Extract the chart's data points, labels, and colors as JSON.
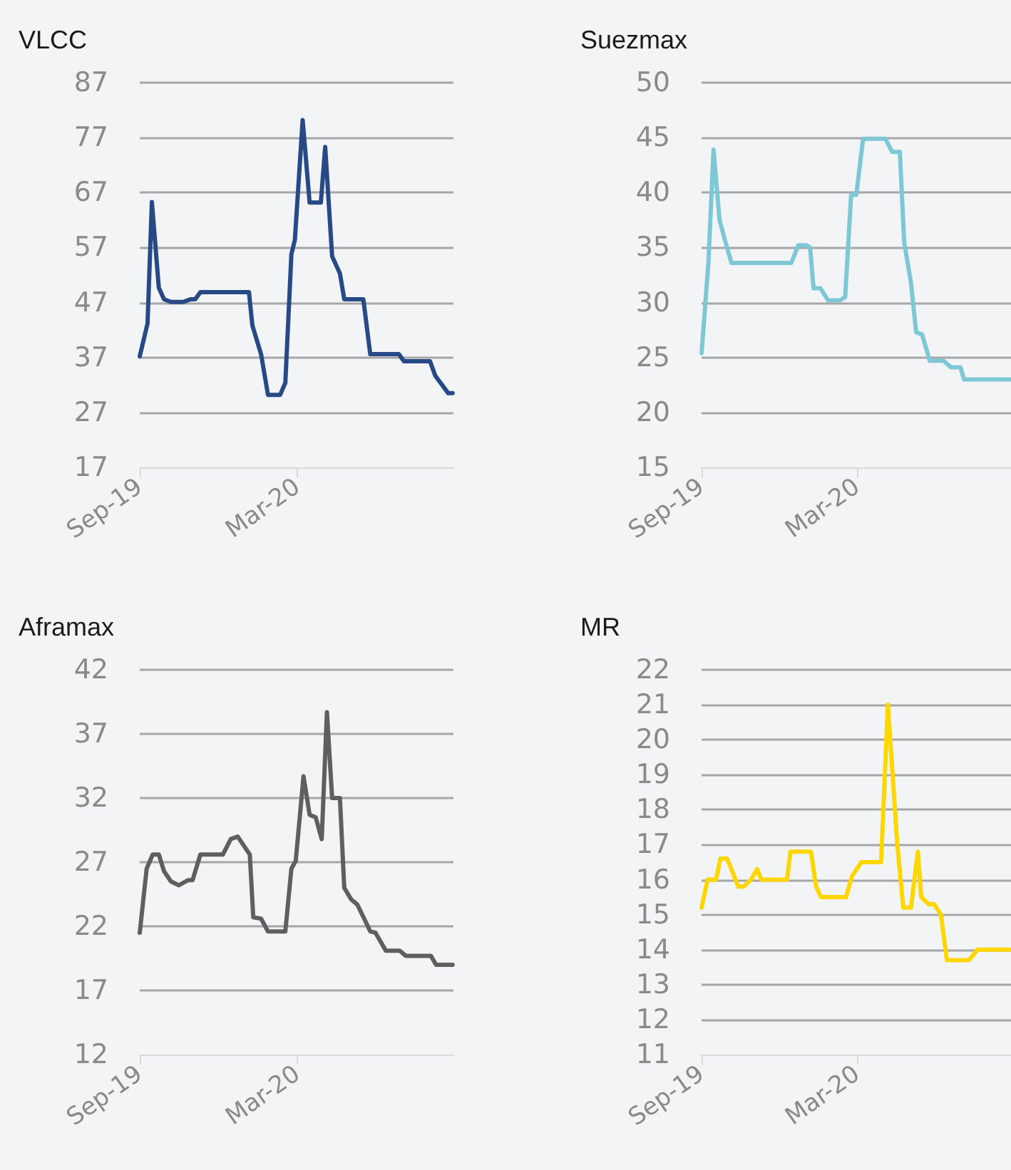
{
  "chart_data": [
    {
      "type": "line",
      "title": "VLCC",
      "xlim": [
        "2019-09-01",
        "2020-08-28"
      ],
      "xticks": [
        {
          "value": "2019-09-01",
          "label": "Sep-19"
        },
        {
          "value": "2020-03-01",
          "label": "Mar-20"
        }
      ],
      "ylim": [
        17,
        87
      ],
      "yticks": [
        17,
        27,
        37,
        47,
        57,
        67,
        77,
        87
      ],
      "grid": "y",
      "x": [
        "2019-09-01",
        "2019-09-10",
        "2019-09-15",
        "2019-09-23",
        "2019-09-29",
        "2019-10-07",
        "2019-10-21",
        "2019-10-30",
        "2019-11-04",
        "2019-11-10",
        "2020-01-05",
        "2020-01-09",
        "2020-01-19",
        "2020-01-27",
        "2020-02-10",
        "2020-02-16",
        "2020-02-23",
        "2020-02-27",
        "2020-03-07",
        "2020-03-15",
        "2020-03-28",
        "2020-04-02",
        "2020-04-10",
        "2020-04-19",
        "2020-04-24",
        "2020-05-16",
        "2020-05-24",
        "2020-06-26",
        "2020-07-02",
        "2020-08-01",
        "2020-08-07",
        "2020-08-22",
        "2020-08-27"
      ],
      "series": [
        {
          "color": "#274a87",
          "values": [
            37.2,
            43.2,
            65.3,
            49.7,
            47.6,
            47.1,
            47.1,
            47.6,
            47.6,
            48.9,
            48.9,
            42.8,
            37.6,
            30.2,
            30.2,
            32.4,
            55.8,
            58.4,
            80.2,
            65.2,
            65.2,
            75.3,
            55.4,
            52.3,
            47.6,
            47.6,
            37.6,
            37.6,
            36.3,
            36.3,
            33.7,
            30.5,
            30.5
          ]
        }
      ]
    },
    {
      "type": "line",
      "title": "Suezmax",
      "xlim": [
        "2019-09-01",
        "2020-08-28"
      ],
      "xticks": [
        {
          "value": "2019-09-01",
          "label": "Sep-19"
        },
        {
          "value": "2020-03-01",
          "label": "Mar-20"
        }
      ],
      "ylim": [
        15,
        50
      ],
      "yticks": [
        15,
        20,
        25,
        30,
        35,
        40,
        45,
        50
      ],
      "grid": "y",
      "x": [
        "2019-09-01",
        "2019-09-09",
        "2019-09-15",
        "2019-09-22",
        "2019-09-29",
        "2019-10-06",
        "2019-12-15",
        "2019-12-23",
        "2020-01-02",
        "2020-01-06",
        "2020-01-10",
        "2020-01-18",
        "2020-01-27",
        "2020-02-10",
        "2020-02-16",
        "2020-02-23",
        "2020-02-29",
        "2020-03-08",
        "2020-04-03",
        "2020-04-11",
        "2020-04-20",
        "2020-04-25",
        "2020-05-03",
        "2020-05-09",
        "2020-05-16",
        "2020-05-25",
        "2020-06-10",
        "2020-06-19",
        "2020-06-30",
        "2020-07-04",
        "2020-08-27"
      ],
      "series": [
        {
          "color": "#7ec8d5",
          "values": [
            25.4,
            33.6,
            43.9,
            37.5,
            35.5,
            33.6,
            33.6,
            35.2,
            35.2,
            35.0,
            31.3,
            31.3,
            30.2,
            30.2,
            30.5,
            39.8,
            39.8,
            44.9,
            44.9,
            43.7,
            43.7,
            35.5,
            31.8,
            27.3,
            27.1,
            24.7,
            24.7,
            24.1,
            24.1,
            23.0,
            23.0
          ]
        }
      ]
    },
    {
      "type": "line",
      "title": "Aframax",
      "xlim": [
        "2019-09-01",
        "2020-08-28"
      ],
      "xticks": [
        {
          "value": "2019-09-01",
          "label": "Sep-19"
        },
        {
          "value": "2020-03-01",
          "label": "Mar-20"
        }
      ],
      "ylim": [
        12,
        42
      ],
      "yticks": [
        12,
        17,
        22,
        27,
        32,
        37,
        42
      ],
      "grid": "y",
      "x": [
        "2019-09-01",
        "2019-09-09",
        "2019-09-16",
        "2019-09-23",
        "2019-09-29",
        "2019-10-07",
        "2019-10-16",
        "2019-10-27",
        "2019-11-01",
        "2019-11-10",
        "2019-12-06",
        "2019-12-15",
        "2019-12-23",
        "2019-12-30",
        "2020-01-06",
        "2020-01-10",
        "2020-01-19",
        "2020-01-27",
        "2020-02-16",
        "2020-02-23",
        "2020-02-28",
        "2020-03-08",
        "2020-03-15",
        "2020-03-22",
        "2020-03-29",
        "2020-04-04",
        "2020-04-10",
        "2020-04-19",
        "2020-04-24",
        "2020-05-02",
        "2020-05-09",
        "2020-05-17",
        "2020-05-24",
        "2020-05-30",
        "2020-06-11",
        "2020-06-27",
        "2020-07-04",
        "2020-08-02",
        "2020-08-08",
        "2020-08-27"
      ],
      "series": [
        {
          "color": "#5f5f5f",
          "values": [
            21.5,
            26.5,
            27.6,
            27.6,
            26.3,
            25.5,
            25.2,
            25.6,
            25.6,
            27.6,
            27.6,
            28.8,
            29.0,
            28.3,
            27.6,
            22.7,
            22.6,
            21.6,
            21.6,
            26.5,
            27.1,
            33.7,
            30.7,
            30.5,
            28.8,
            38.7,
            32.0,
            32.0,
            25.0,
            24.1,
            23.7,
            22.6,
            21.6,
            21.5,
            20.1,
            20.1,
            19.7,
            19.7,
            19.0,
            19.0
          ]
        }
      ]
    },
    {
      "type": "line",
      "title": "MR",
      "xlim": [
        "2019-09-01",
        "2020-08-28"
      ],
      "xticks": [
        {
          "value": "2019-09-01",
          "label": "Sep-19"
        },
        {
          "value": "2020-03-01",
          "label": "Mar-20"
        }
      ],
      "ylim": [
        11,
        22
      ],
      "yticks": [
        11,
        12,
        13,
        14,
        15,
        16,
        17,
        18,
        19,
        20,
        21,
        22
      ],
      "grid": "y",
      "x": [
        "2019-09-01",
        "2019-09-08",
        "2019-09-18",
        "2019-09-23",
        "2019-10-01",
        "2019-10-06",
        "2019-10-14",
        "2019-10-20",
        "2019-10-29",
        "2019-11-05",
        "2019-11-10",
        "2019-12-10",
        "2019-12-14",
        "2020-01-07",
        "2020-01-13",
        "2020-01-19",
        "2020-02-17",
        "2020-02-24",
        "2020-03-06",
        "2020-03-29",
        "2020-04-06",
        "2020-04-17",
        "2020-04-24",
        "2020-05-03",
        "2020-05-11",
        "2020-05-15",
        "2020-05-24",
        "2020-05-30",
        "2020-06-07",
        "2020-06-14",
        "2020-07-10",
        "2020-07-20",
        "2020-08-27"
      ],
      "series": [
        {
          "color": "#ffd700",
          "values": [
            15.2,
            16.0,
            16.0,
            16.6,
            16.6,
            16.3,
            15.8,
            15.8,
            16.0,
            16.3,
            16.0,
            16.0,
            16.8,
            16.8,
            15.8,
            15.5,
            15.5,
            16.1,
            16.5,
            16.5,
            21.0,
            17.0,
            15.2,
            15.2,
            16.8,
            15.5,
            15.3,
            15.3,
            15.0,
            13.7,
            13.7,
            14.0,
            14.0
          ]
        }
      ]
    }
  ]
}
